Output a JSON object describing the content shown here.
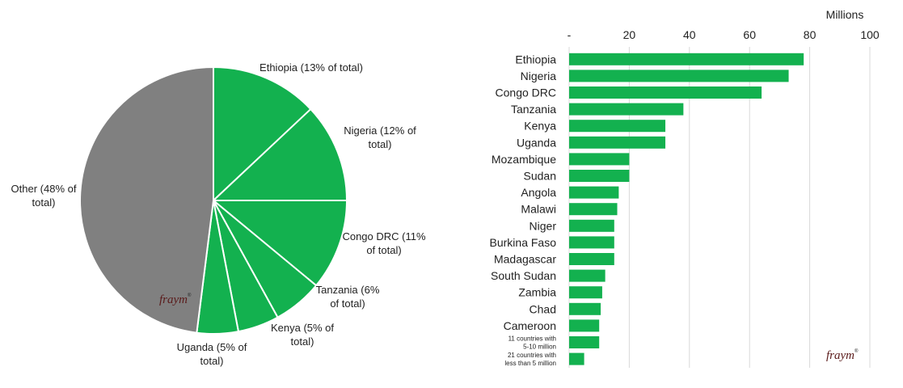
{
  "logo_text": "fraym",
  "chart_data": [
    {
      "type": "pie",
      "slices": [
        {
          "label": "Ethiopia (13% of total)",
          "value": 13,
          "color": "#13b14f"
        },
        {
          "label": "Nigeria (12% of total)",
          "value": 12,
          "color": "#13b14f"
        },
        {
          "label": "Congo DRC (11% of total)",
          "value": 11,
          "color": "#13b14f"
        },
        {
          "label": "Tanzania (6% of total)",
          "value": 6,
          "color": "#13b14f"
        },
        {
          "label": "Kenya (5% of total)",
          "value": 5,
          "color": "#13b14f"
        },
        {
          "label": "Uganda (5% of total)",
          "value": 5,
          "color": "#13b14f"
        },
        {
          "label": "Other (48% of total)",
          "value": 48,
          "color": "#808080"
        }
      ]
    },
    {
      "type": "bar",
      "orientation": "horizontal",
      "axis_title": "Millions",
      "xlim": [
        0,
        100
      ],
      "ticks": [
        "-",
        "20",
        "40",
        "60",
        "80",
        "100"
      ],
      "grid": true,
      "bar_color": "#13b14f",
      "categories": [
        "Ethiopia",
        "Nigeria",
        "Congo DRC",
        "Tanzania",
        "Kenya",
        "Uganda",
        "Mozambique",
        "Sudan",
        "Angola",
        "Malawi",
        "Niger",
        "Burkina Faso",
        "Madagascar",
        "South Sudan",
        "Zambia",
        "Chad",
        "Cameroon",
        "11 countries with 5-10 million",
        "21 countries with less than 5 million"
      ],
      "values": [
        78,
        73,
        64,
        38,
        32,
        32,
        20,
        20,
        16.5,
        16,
        15,
        15,
        15,
        12,
        11,
        10.5,
        10,
        10,
        5
      ]
    }
  ]
}
